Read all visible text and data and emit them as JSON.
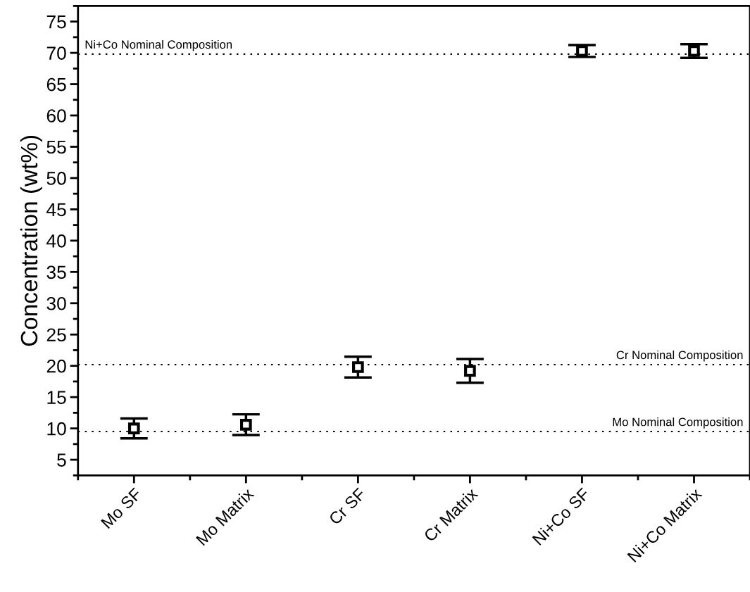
{
  "chart_data": {
    "type": "scatter",
    "ylabel": "Concentration (wt%)",
    "categories": [
      "Mo SF",
      "Mo Matrix",
      "Cr SF",
      "Cr Matrix",
      "Ni+Co SF",
      "Ni+Co Matrix"
    ],
    "series": [
      {
        "color": "#000000",
        "values": [
          10.0,
          10.6,
          19.8,
          19.2,
          70.3,
          70.3
        ],
        "errors": [
          1.6,
          1.65,
          1.65,
          1.9,
          0.95,
          1.1
        ]
      }
    ],
    "marker": "square",
    "grid": false,
    "legend": false,
    "ylim": [
      2.5,
      77.5
    ],
    "yticks": [
      5,
      10,
      15,
      20,
      25,
      30,
      35,
      40,
      45,
      50,
      55,
      60,
      65,
      70,
      75
    ],
    "ref_lines": [
      {
        "axis": "y",
        "value": 69.8,
        "label": "Ni+Co Nominal Composition",
        "color": "#000000",
        "line_style": "dotted"
      },
      {
        "axis": "y",
        "value": 20.2,
        "label": "Cr Nominal Composition",
        "color": "#000000",
        "line_style": "dotted"
      },
      {
        "axis": "y",
        "value": 9.5,
        "label": "Mo Nominal Composition",
        "color": "#000000",
        "line_style": "dotted"
      }
    ]
  }
}
